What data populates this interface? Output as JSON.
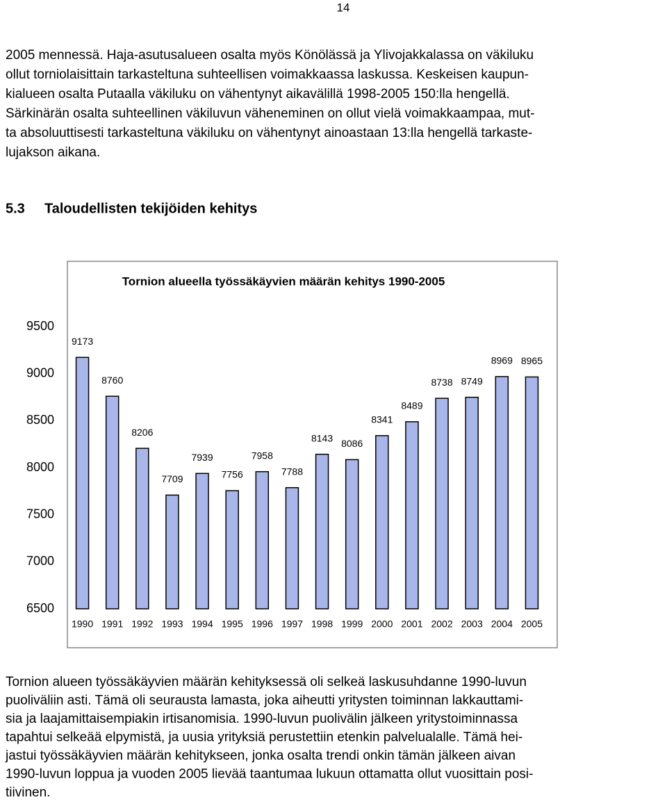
{
  "page_number": "14",
  "paragraph_1": [
    "2005 mennessä. Haja-asutusalueen osalta myös Könölässä ja Ylivojakkalassa on väkiluku",
    "ollut torniolaisittain tarkasteltuna suhteellisen voimakkaassa laskussa. Keskeisen kaupun-",
    "kialueen osalta Putaalla väkiluku on vähentynyt aikavälillä 1998-2005 150:lla hengellä.",
    "Särkinärän osalta suhteellinen väkiluvun väheneminen on ollut vielä voimakkaampaa, mut-",
    "ta absoluuttisesti tarkasteltuna väkiluku on vähentynyt ainoastaan 13:lla hengellä tarkaste-",
    "lujakson aikana."
  ],
  "heading": {
    "number": "5.3",
    "title": "Taloudellisten tekijöiden kehitys"
  },
  "chart_data": {
    "type": "bar",
    "title": "Tornion alueella työssäkäyvien määrän kehitys 1990-2005",
    "categories": [
      "1990",
      "1991",
      "1992",
      "1993",
      "1994",
      "1995",
      "1996",
      "1997",
      "1998",
      "1999",
      "2000",
      "2001",
      "2002",
      "2003",
      "2004",
      "2005"
    ],
    "values": [
      9173,
      8760,
      8206,
      7709,
      7939,
      7756,
      7958,
      7788,
      8143,
      8086,
      8341,
      8489,
      8738,
      8749,
      8969,
      8965
    ],
    "color": "#a9b6ea",
    "ylim": [
      6500,
      9500
    ],
    "yticks": [
      6500,
      7000,
      7500,
      8000,
      8500,
      9000,
      9500
    ],
    "grid": false
  },
  "paragraph_2": [
    "Tornion alueen työssäkäyvien määrän kehityksessä oli selkeä laskusuhdanne 1990-luvun",
    "puoliväliin asti. Tämä oli seurausta lamasta, joka aiheutti yritysten toiminnan lakkauttami-",
    "sia ja laajamittaisempiakin irtisanomisia. 1990-luvun puolivälin jälkeen yritystoiminnassa",
    "tapahtui selkeää elpymistä, ja uusia yrityksiä perustettiin etenkin palvelualalle. Tämä hei-",
    "jastui työssäkäyvien määrän kehitykseen, jonka osalta trendi onkin tämän jälkeen aivan",
    "1990-luvun loppua ja vuoden 2005 lievää taantumaa lukuun ottamatta ollut vuosittain posi-",
    "tiivinen."
  ]
}
